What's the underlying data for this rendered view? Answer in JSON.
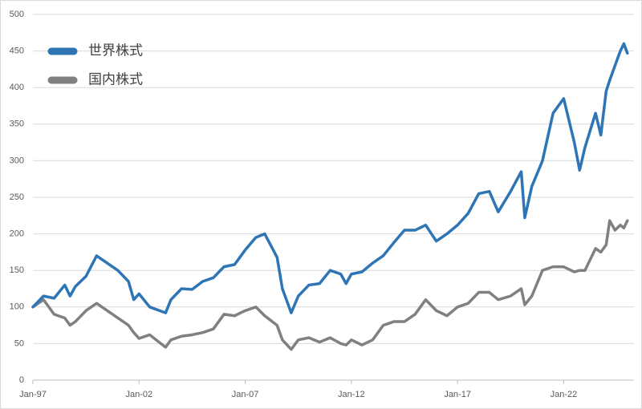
{
  "chart_data": {
    "type": "line",
    "x": [
      "1997-01",
      "1997-07",
      "1998-01",
      "1998-07",
      "1998-10",
      "1999-01",
      "1999-07",
      "2000-01",
      "2000-07",
      "2001-01",
      "2001-07",
      "2001-10",
      "2002-01",
      "2002-07",
      "2003-04",
      "2003-07",
      "2004-01",
      "2004-07",
      "2005-01",
      "2005-07",
      "2006-01",
      "2006-07",
      "2007-01",
      "2007-07",
      "2007-12",
      "2008-07",
      "2008-10",
      "2009-03",
      "2009-07",
      "2010-01",
      "2010-07",
      "2011-01",
      "2011-07",
      "2011-10",
      "2012-01",
      "2012-07",
      "2013-01",
      "2013-07",
      "2014-01",
      "2014-07",
      "2015-01",
      "2015-07",
      "2016-01",
      "2016-07",
      "2017-01",
      "2017-07",
      "2018-01",
      "2018-07",
      "2018-12",
      "2019-07",
      "2020-01",
      "2020-03",
      "2020-07",
      "2021-01",
      "2021-07",
      "2022-01",
      "2022-07",
      "2022-10",
      "2023-01",
      "2023-07",
      "2023-10",
      "2024-01",
      "2024-03",
      "2024-06",
      "2024-09",
      "2024-11",
      "2025-01"
    ],
    "series": [
      {
        "name": "世界株式",
        "color": "#2e75b6",
        "values": [
          100,
          115,
          112,
          130,
          115,
          128,
          142,
          170,
          160,
          150,
          135,
          110,
          118,
          100,
          92,
          110,
          125,
          124,
          135,
          140,
          155,
          158,
          178,
          195,
          200,
          168,
          125,
          92,
          115,
          130,
          132,
          150,
          145,
          132,
          145,
          148,
          160,
          170,
          188,
          205,
          205,
          212,
          190,
          200,
          212,
          228,
          255,
          258,
          230,
          258,
          285,
          222,
          265,
          300,
          365,
          385,
          325,
          287,
          318,
          365,
          335,
          395,
          410,
          430,
          450,
          460,
          447
        ]
      },
      {
        "name": "国内株式",
        "color": "#808080",
        "values": [
          100,
          110,
          90,
          85,
          75,
          80,
          95,
          105,
          95,
          85,
          75,
          65,
          57,
          62,
          45,
          55,
          60,
          62,
          65,
          70,
          90,
          88,
          95,
          100,
          88,
          75,
          55,
          42,
          55,
          58,
          52,
          58,
          50,
          48,
          55,
          48,
          55,
          75,
          80,
          80,
          90,
          110,
          95,
          88,
          100,
          105,
          120,
          120,
          110,
          115,
          125,
          103,
          115,
          150,
          155,
          155,
          148,
          150,
          150,
          180,
          175,
          185,
          218,
          205,
          212,
          208,
          218
        ]
      }
    ],
    "xlim": [
      "1997-01",
      "2025-02"
    ],
    "xticks": [
      {
        "value": "1997-01",
        "label": "Jan-97"
      },
      {
        "value": "2002-01",
        "label": "Jan-02"
      },
      {
        "value": "2007-01",
        "label": "Jan-07"
      },
      {
        "value": "2012-01",
        "label": "Jan-12"
      },
      {
        "value": "2017-01",
        "label": "Jan-17"
      },
      {
        "value": "2022-01",
        "label": "Jan-22"
      }
    ],
    "ylim": [
      0,
      500
    ],
    "yticks": [
      0,
      50,
      100,
      150,
      200,
      250,
      300,
      350,
      400,
      450,
      500
    ],
    "grid": true,
    "legend": "upper-left"
  }
}
